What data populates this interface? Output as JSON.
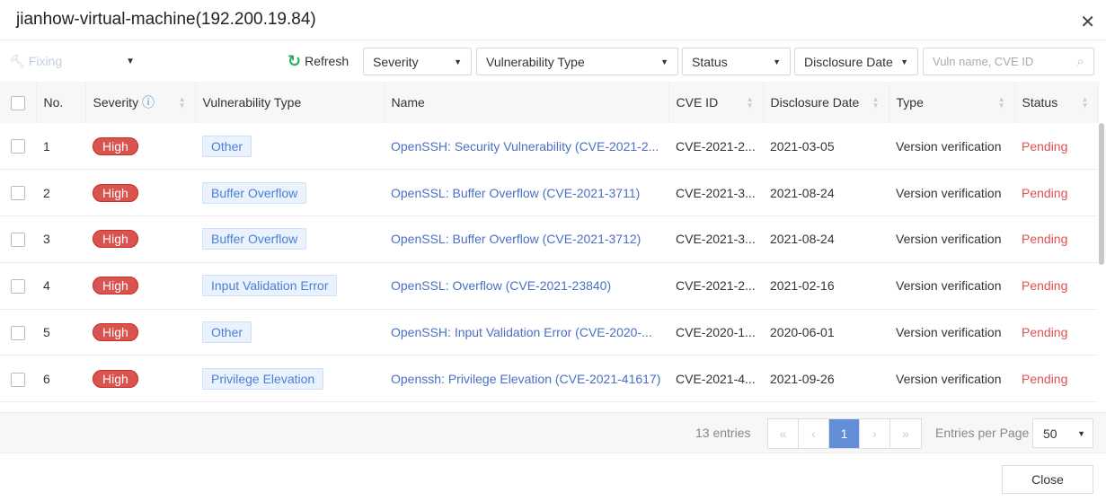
{
  "title": "jianhow-virtual-machine(192.200.19.84)",
  "toolbar": {
    "fixing": "Fixing",
    "refresh": "Refresh",
    "filters": [
      "Severity",
      "Vulnerability Type",
      "Status",
      "Disclosure Date"
    ],
    "search_placeholder": "Vuln name, CVE ID"
  },
  "columns": [
    "No.",
    "Severity",
    "Vulnerability Type",
    "Name",
    "CVE ID",
    "Disclosure Date",
    "Type",
    "Status"
  ],
  "rows": [
    {
      "no": "1",
      "severity": "High",
      "vtype": "Other",
      "name": "OpenSSH: Security Vulnerability (CVE-2021-2...",
      "cve": "CVE-2021-2...",
      "date": "2021-03-05",
      "type": "Version verification",
      "status": "Pending"
    },
    {
      "no": "2",
      "severity": "High",
      "vtype": "Buffer Overflow",
      "name": "OpenSSL: Buffer Overflow (CVE-2021-3711)",
      "cve": "CVE-2021-3...",
      "date": "2021-08-24",
      "type": "Version verification",
      "status": "Pending"
    },
    {
      "no": "3",
      "severity": "High",
      "vtype": "Buffer Overflow",
      "name": "OpenSSL: Buffer Overflow (CVE-2021-3712)",
      "cve": "CVE-2021-3...",
      "date": "2021-08-24",
      "type": "Version verification",
      "status": "Pending"
    },
    {
      "no": "4",
      "severity": "High",
      "vtype": "Input Validation Error",
      "name": "OpenSSL: Overflow (CVE-2021-23840)",
      "cve": "CVE-2021-2...",
      "date": "2021-02-16",
      "type": "Version verification",
      "status": "Pending"
    },
    {
      "no": "5",
      "severity": "High",
      "vtype": "Other",
      "name": "OpenSSH: Input Validation Error (CVE-2020-...",
      "cve": "CVE-2020-1...",
      "date": "2020-06-01",
      "type": "Version verification",
      "status": "Pending"
    },
    {
      "no": "6",
      "severity": "High",
      "vtype": "Privilege Elevation",
      "name": "Openssh: Privilege Elevation (CVE-2021-41617)",
      "cve": "CVE-2021-4...",
      "date": "2021-09-26",
      "type": "Version verification",
      "status": "Pending"
    }
  ],
  "footer": {
    "entries": "13 entries",
    "page": "1",
    "per_page_label": "Entries per Page",
    "per_page": "50"
  },
  "close": "Close"
}
